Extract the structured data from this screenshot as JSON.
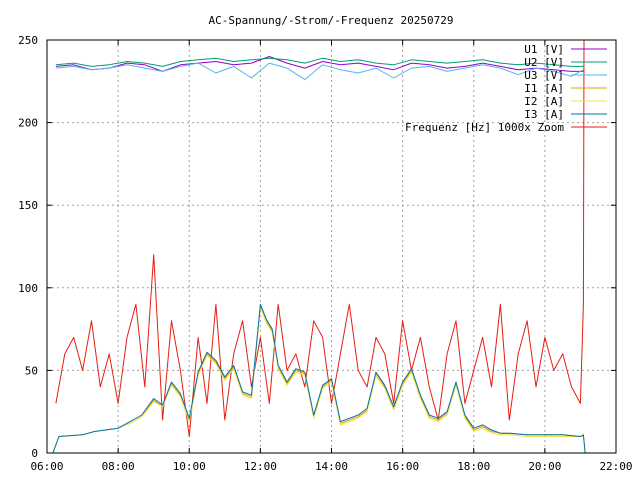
{
  "chart_data": {
    "type": "line",
    "title": "AC-Spannung/-Strom/-Frequenz 20250729",
    "xlabel": "",
    "ylabel": "",
    "xlim": [
      "06:00",
      "22:00"
    ],
    "ylim": [
      0,
      250
    ],
    "x_ticks": [
      "06:00",
      "08:00",
      "10:00",
      "12:00",
      "14:00",
      "16:00",
      "18:00",
      "20:00",
      "22:00"
    ],
    "y_ticks": [
      "0",
      "50",
      "100",
      "150",
      "200",
      "250"
    ],
    "grid": true,
    "legend_position": "top-right",
    "series": [
      {
        "name": "U1 [V]",
        "color": "#9400d3",
        "x": [
          "06:15",
          "06:45",
          "07:15",
          "07:45",
          "08:15",
          "08:45",
          "09:15",
          "09:45",
          "10:15",
          "10:45",
          "11:15",
          "11:45",
          "12:15",
          "12:45",
          "13:15",
          "13:45",
          "14:15",
          "14:45",
          "15:15",
          "15:45",
          "16:15",
          "16:45",
          "17:15",
          "17:45",
          "18:15",
          "18:45",
          "19:15",
          "19:45",
          "20:15",
          "20:45",
          "21:05"
        ],
        "values": [
          234,
          235,
          232,
          233,
          236,
          235,
          231,
          235,
          236,
          237,
          235,
          236,
          240,
          236,
          233,
          237,
          235,
          236,
          234,
          232,
          236,
          235,
          233,
          234,
          236,
          234,
          232,
          233,
          232,
          231,
          231
        ]
      },
      {
        "name": "U2 [V]",
        "color": "#009e73",
        "x": [
          "06:15",
          "06:45",
          "07:15",
          "07:45",
          "08:15",
          "08:45",
          "09:15",
          "09:45",
          "10:15",
          "10:45",
          "11:15",
          "11:45",
          "12:15",
          "12:45",
          "13:15",
          "13:45",
          "14:15",
          "14:45",
          "15:15",
          "15:45",
          "16:15",
          "16:45",
          "17:15",
          "17:45",
          "18:15",
          "18:45",
          "19:15",
          "19:45",
          "20:15",
          "20:45",
          "21:05"
        ],
        "values": [
          235,
          236,
          234,
          235,
          237,
          236,
          234,
          237,
          238,
          239,
          237,
          238,
          239,
          238,
          236,
          239,
          237,
          238,
          236,
          235,
          238,
          237,
          236,
          237,
          238,
          236,
          235,
          236,
          235,
          234,
          234
        ]
      },
      {
        "name": "U3 [V]",
        "color": "#56b4e9",
        "x": [
          "06:15",
          "06:45",
          "07:15",
          "07:45",
          "08:15",
          "08:45",
          "09:15",
          "09:45",
          "10:15",
          "10:45",
          "11:15",
          "11:45",
          "12:15",
          "12:45",
          "13:15",
          "13:45",
          "14:15",
          "14:45",
          "15:15",
          "15:45",
          "16:15",
          "16:45",
          "17:15",
          "17:45",
          "18:15",
          "18:45",
          "19:15",
          "19:45",
          "20:15",
          "20:45",
          "21:05"
        ],
        "values": [
          233,
          234,
          232,
          233,
          235,
          233,
          231,
          234,
          236,
          230,
          234,
          227,
          236,
          233,
          226,
          235,
          232,
          230,
          233,
          227,
          233,
          234,
          231,
          233,
          235,
          233,
          229,
          233,
          231,
          228,
          232
        ]
      },
      {
        "name": "I1 [A]",
        "color": "#e69f00",
        "x": [
          "06:10",
          "06:20",
          "07:00",
          "07:20",
          "07:40",
          "08:00",
          "08:20",
          "08:40",
          "09:00",
          "09:15",
          "09:30",
          "09:45",
          "10:00",
          "10:15",
          "10:30",
          "10:45",
          "11:00",
          "11:15",
          "11:30",
          "11:45",
          "12:00",
          "12:10",
          "12:20",
          "12:30",
          "12:45",
          "13:00",
          "13:15",
          "13:30",
          "13:45",
          "14:00",
          "14:15",
          "14:30",
          "14:45",
          "15:00",
          "15:15",
          "15:30",
          "15:45",
          "16:00",
          "16:15",
          "16:30",
          "16:45",
          "17:00",
          "17:15",
          "17:30",
          "17:45",
          "18:00",
          "18:15",
          "18:30",
          "18:45",
          "19:00",
          "19:30",
          "20:00",
          "20:30",
          "21:00",
          "21:05",
          "21:08"
        ],
        "values": [
          0,
          10,
          11,
          13,
          14,
          15,
          18,
          22,
          32,
          28,
          42,
          35,
          20,
          48,
          60,
          55,
          45,
          52,
          36,
          34,
          89,
          80,
          74,
          52,
          42,
          50,
          48,
          22,
          40,
          44,
          18,
          20,
          22,
          26,
          48,
          40,
          27,
          42,
          50,
          34,
          22,
          20,
          24,
          42,
          22,
          14,
          16,
          13,
          12,
          12,
          11,
          11,
          11,
          10,
          10,
          0
        ]
      },
      {
        "name": "I2 [A]",
        "color": "#f0e442",
        "x": [
          "06:10",
          "06:20",
          "07:00",
          "07:20",
          "07:40",
          "08:00",
          "08:20",
          "08:40",
          "09:00",
          "09:15",
          "09:30",
          "09:45",
          "10:00",
          "10:15",
          "10:30",
          "10:45",
          "11:00",
          "11:15",
          "11:30",
          "11:45",
          "12:00",
          "12:10",
          "12:20",
          "12:30",
          "12:45",
          "13:00",
          "13:15",
          "13:30",
          "13:45",
          "14:00",
          "14:15",
          "14:30",
          "14:45",
          "15:00",
          "15:15",
          "15:30",
          "15:45",
          "16:00",
          "16:15",
          "16:30",
          "16:45",
          "17:00",
          "17:15",
          "17:30",
          "17:45",
          "18:00",
          "18:15",
          "18:30",
          "18:45",
          "19:00",
          "19:30",
          "20:00",
          "20:30",
          "21:00",
          "21:05",
          "21:08"
        ],
        "values": [
          0,
          10,
          11,
          13,
          14,
          15,
          18,
          22,
          31,
          28,
          41,
          34,
          19,
          47,
          59,
          54,
          44,
          51,
          35,
          33,
          88,
          79,
          73,
          51,
          41,
          49,
          47,
          21,
          39,
          43,
          17,
          19,
          21,
          25,
          47,
          39,
          26,
          41,
          49,
          33,
          21,
          19,
          23,
          41,
          21,
          13,
          15,
          12,
          11,
          11,
          10,
          10,
          10,
          10,
          10,
          0
        ]
      },
      {
        "name": "I3 [A]",
        "color": "#0072b2",
        "x": [
          "06:10",
          "06:20",
          "07:00",
          "07:20",
          "07:40",
          "08:00",
          "08:20",
          "08:40",
          "09:00",
          "09:15",
          "09:30",
          "09:45",
          "10:00",
          "10:15",
          "10:30",
          "10:45",
          "11:00",
          "11:15",
          "11:30",
          "11:45",
          "12:00",
          "12:10",
          "12:20",
          "12:30",
          "12:45",
          "13:00",
          "13:15",
          "13:30",
          "13:45",
          "14:00",
          "14:15",
          "14:30",
          "14:45",
          "15:00",
          "15:15",
          "15:30",
          "15:45",
          "16:00",
          "16:15",
          "16:30",
          "16:45",
          "17:00",
          "17:15",
          "17:30",
          "17:45",
          "18:00",
          "18:15",
          "18:30",
          "18:45",
          "19:00",
          "19:30",
          "20:00",
          "20:30",
          "21:00",
          "21:05",
          "21:08"
        ],
        "values": [
          0,
          10,
          11,
          13,
          14,
          15,
          19,
          23,
          33,
          29,
          43,
          36,
          21,
          49,
          61,
          56,
          46,
          53,
          37,
          35,
          90,
          81,
          75,
          53,
          43,
          51,
          49,
          23,
          41,
          45,
          19,
          21,
          23,
          27,
          49,
          41,
          28,
          43,
          51,
          35,
          23,
          21,
          25,
          43,
          23,
          15,
          17,
          14,
          12,
          12,
          11,
          11,
          11,
          10,
          11,
          0
        ]
      },
      {
        "name": "Frequenz [Hz] 1000x Zoom",
        "color": "#e51e10",
        "x": [
          "06:15",
          "06:30",
          "06:45",
          "07:00",
          "07:15",
          "07:30",
          "07:45",
          "08:00",
          "08:15",
          "08:30",
          "08:45",
          "09:00",
          "09:15",
          "09:30",
          "09:45",
          "10:00",
          "10:15",
          "10:30",
          "10:45",
          "11:00",
          "11:15",
          "11:30",
          "11:45",
          "12:00",
          "12:15",
          "12:30",
          "12:45",
          "13:00",
          "13:15",
          "13:30",
          "13:45",
          "14:00",
          "14:15",
          "14:30",
          "14:45",
          "15:00",
          "15:15",
          "15:30",
          "15:45",
          "16:00",
          "16:15",
          "16:30",
          "16:45",
          "17:00",
          "17:15",
          "17:30",
          "17:45",
          "18:00",
          "18:15",
          "18:30",
          "18:45",
          "19:00",
          "19:15",
          "19:30",
          "19:45",
          "20:00",
          "20:15",
          "20:30",
          "20:45",
          "21:00",
          "21:05",
          "21:06"
        ],
        "values": [
          30,
          60,
          70,
          50,
          80,
          40,
          60,
          30,
          70,
          90,
          40,
          120,
          20,
          80,
          50,
          10,
          70,
          30,
          90,
          20,
          60,
          80,
          40,
          70,
          30,
          90,
          50,
          60,
          40,
          80,
          70,
          30,
          60,
          90,
          50,
          40,
          70,
          60,
          30,
          80,
          50,
          70,
          40,
          20,
          60,
          80,
          30,
          50,
          70,
          40,
          90,
          20,
          60,
          80,
          40,
          70,
          50,
          60,
          40,
          30,
          90,
          250
        ]
      }
    ]
  }
}
